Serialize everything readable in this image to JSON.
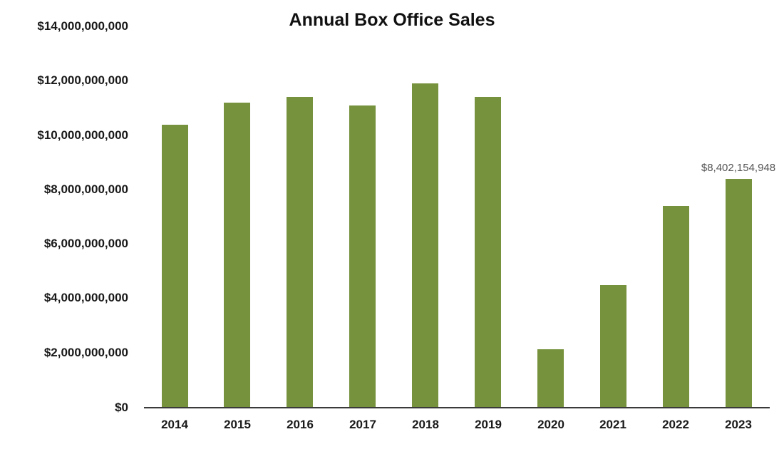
{
  "chart_data": {
    "type": "bar",
    "title": "Annual Box Office Sales",
    "xlabel": "",
    "ylabel": "",
    "categories": [
      "2014",
      "2015",
      "2016",
      "2017",
      "2018",
      "2019",
      "2020",
      "2021",
      "2022",
      "2023"
    ],
    "values": [
      10400000000,
      11200000000,
      11400000000,
      11100000000,
      11900000000,
      11400000000,
      2150000000,
      4500000000,
      7400000000,
      8402154948
    ],
    "ylim": [
      0,
      14000000000
    ],
    "y_ticks": [
      0,
      2000000000,
      4000000000,
      6000000000,
      8000000000,
      10000000000,
      12000000000,
      14000000000
    ],
    "y_tick_labels": [
      "$0",
      "$2,000,000,000",
      "$4,000,000,000",
      "$6,000,000,000",
      "$8,000,000,000",
      "$10,000,000,000",
      "$12,000,000,000",
      "$14,000,000,000"
    ],
    "grid": false,
    "legend": null,
    "bar_color": "#76923C",
    "annotations": [
      {
        "category": "2023",
        "text": "$8,402,154,948"
      }
    ]
  },
  "colors": {
    "bar": "#76923C",
    "axis": "#3a3a3a",
    "data_label": "#555555"
  }
}
